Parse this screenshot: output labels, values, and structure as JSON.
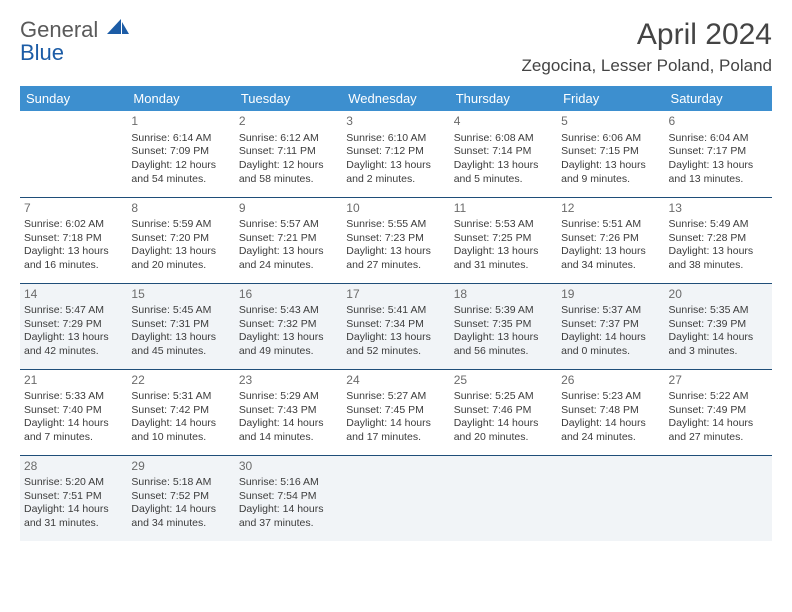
{
  "brand": {
    "name_top": "General",
    "name_bottom": "Blue",
    "accent": "#1c5ca6"
  },
  "title": "April 2024",
  "location": "Zegocina, Lesser Poland, Poland",
  "colors": {
    "header_bg": "#3d8fcf",
    "header_text": "#ffffff",
    "rule": "#1f4e79",
    "shade_bg": "#f1f4f7",
    "body_text": "#3c3c3c"
  },
  "daynames": [
    "Sunday",
    "Monday",
    "Tuesday",
    "Wednesday",
    "Thursday",
    "Friday",
    "Saturday"
  ],
  "weeks": [
    [
      {
        "n": "",
        "sr": "",
        "ss": "",
        "d1": "",
        "d2": ""
      },
      {
        "n": "1",
        "sr": "Sunrise: 6:14 AM",
        "ss": "Sunset: 7:09 PM",
        "d1": "Daylight: 12 hours",
        "d2": "and 54 minutes."
      },
      {
        "n": "2",
        "sr": "Sunrise: 6:12 AM",
        "ss": "Sunset: 7:11 PM",
        "d1": "Daylight: 12 hours",
        "d2": "and 58 minutes."
      },
      {
        "n": "3",
        "sr": "Sunrise: 6:10 AM",
        "ss": "Sunset: 7:12 PM",
        "d1": "Daylight: 13 hours",
        "d2": "and 2 minutes."
      },
      {
        "n": "4",
        "sr": "Sunrise: 6:08 AM",
        "ss": "Sunset: 7:14 PM",
        "d1": "Daylight: 13 hours",
        "d2": "and 5 minutes."
      },
      {
        "n": "5",
        "sr": "Sunrise: 6:06 AM",
        "ss": "Sunset: 7:15 PM",
        "d1": "Daylight: 13 hours",
        "d2": "and 9 minutes."
      },
      {
        "n": "6",
        "sr": "Sunrise: 6:04 AM",
        "ss": "Sunset: 7:17 PM",
        "d1": "Daylight: 13 hours",
        "d2": "and 13 minutes."
      }
    ],
    [
      {
        "n": "7",
        "sr": "Sunrise: 6:02 AM",
        "ss": "Sunset: 7:18 PM",
        "d1": "Daylight: 13 hours",
        "d2": "and 16 minutes."
      },
      {
        "n": "8",
        "sr": "Sunrise: 5:59 AM",
        "ss": "Sunset: 7:20 PM",
        "d1": "Daylight: 13 hours",
        "d2": "and 20 minutes."
      },
      {
        "n": "9",
        "sr": "Sunrise: 5:57 AM",
        "ss": "Sunset: 7:21 PM",
        "d1": "Daylight: 13 hours",
        "d2": "and 24 minutes."
      },
      {
        "n": "10",
        "sr": "Sunrise: 5:55 AM",
        "ss": "Sunset: 7:23 PM",
        "d1": "Daylight: 13 hours",
        "d2": "and 27 minutes."
      },
      {
        "n": "11",
        "sr": "Sunrise: 5:53 AM",
        "ss": "Sunset: 7:25 PM",
        "d1": "Daylight: 13 hours",
        "d2": "and 31 minutes."
      },
      {
        "n": "12",
        "sr": "Sunrise: 5:51 AM",
        "ss": "Sunset: 7:26 PM",
        "d1": "Daylight: 13 hours",
        "d2": "and 34 minutes."
      },
      {
        "n": "13",
        "sr": "Sunrise: 5:49 AM",
        "ss": "Sunset: 7:28 PM",
        "d1": "Daylight: 13 hours",
        "d2": "and 38 minutes."
      }
    ],
    [
      {
        "n": "14",
        "sr": "Sunrise: 5:47 AM",
        "ss": "Sunset: 7:29 PM",
        "d1": "Daylight: 13 hours",
        "d2": "and 42 minutes."
      },
      {
        "n": "15",
        "sr": "Sunrise: 5:45 AM",
        "ss": "Sunset: 7:31 PM",
        "d1": "Daylight: 13 hours",
        "d2": "and 45 minutes."
      },
      {
        "n": "16",
        "sr": "Sunrise: 5:43 AM",
        "ss": "Sunset: 7:32 PM",
        "d1": "Daylight: 13 hours",
        "d2": "and 49 minutes."
      },
      {
        "n": "17",
        "sr": "Sunrise: 5:41 AM",
        "ss": "Sunset: 7:34 PM",
        "d1": "Daylight: 13 hours",
        "d2": "and 52 minutes."
      },
      {
        "n": "18",
        "sr": "Sunrise: 5:39 AM",
        "ss": "Sunset: 7:35 PM",
        "d1": "Daylight: 13 hours",
        "d2": "and 56 minutes."
      },
      {
        "n": "19",
        "sr": "Sunrise: 5:37 AM",
        "ss": "Sunset: 7:37 PM",
        "d1": "Daylight: 14 hours",
        "d2": "and 0 minutes."
      },
      {
        "n": "20",
        "sr": "Sunrise: 5:35 AM",
        "ss": "Sunset: 7:39 PM",
        "d1": "Daylight: 14 hours",
        "d2": "and 3 minutes."
      }
    ],
    [
      {
        "n": "21",
        "sr": "Sunrise: 5:33 AM",
        "ss": "Sunset: 7:40 PM",
        "d1": "Daylight: 14 hours",
        "d2": "and 7 minutes."
      },
      {
        "n": "22",
        "sr": "Sunrise: 5:31 AM",
        "ss": "Sunset: 7:42 PM",
        "d1": "Daylight: 14 hours",
        "d2": "and 10 minutes."
      },
      {
        "n": "23",
        "sr": "Sunrise: 5:29 AM",
        "ss": "Sunset: 7:43 PM",
        "d1": "Daylight: 14 hours",
        "d2": "and 14 minutes."
      },
      {
        "n": "24",
        "sr": "Sunrise: 5:27 AM",
        "ss": "Sunset: 7:45 PM",
        "d1": "Daylight: 14 hours",
        "d2": "and 17 minutes."
      },
      {
        "n": "25",
        "sr": "Sunrise: 5:25 AM",
        "ss": "Sunset: 7:46 PM",
        "d1": "Daylight: 14 hours",
        "d2": "and 20 minutes."
      },
      {
        "n": "26",
        "sr": "Sunrise: 5:23 AM",
        "ss": "Sunset: 7:48 PM",
        "d1": "Daylight: 14 hours",
        "d2": "and 24 minutes."
      },
      {
        "n": "27",
        "sr": "Sunrise: 5:22 AM",
        "ss": "Sunset: 7:49 PM",
        "d1": "Daylight: 14 hours",
        "d2": "and 27 minutes."
      }
    ],
    [
      {
        "n": "28",
        "sr": "Sunrise: 5:20 AM",
        "ss": "Sunset: 7:51 PM",
        "d1": "Daylight: 14 hours",
        "d2": "and 31 minutes."
      },
      {
        "n": "29",
        "sr": "Sunrise: 5:18 AM",
        "ss": "Sunset: 7:52 PM",
        "d1": "Daylight: 14 hours",
        "d2": "and 34 minutes."
      },
      {
        "n": "30",
        "sr": "Sunrise: 5:16 AM",
        "ss": "Sunset: 7:54 PM",
        "d1": "Daylight: 14 hours",
        "d2": "and 37 minutes."
      },
      {
        "n": "",
        "sr": "",
        "ss": "",
        "d1": "",
        "d2": ""
      },
      {
        "n": "",
        "sr": "",
        "ss": "",
        "d1": "",
        "d2": ""
      },
      {
        "n": "",
        "sr": "",
        "ss": "",
        "d1": "",
        "d2": ""
      },
      {
        "n": "",
        "sr": "",
        "ss": "",
        "d1": "",
        "d2": ""
      }
    ]
  ],
  "shaded_weeks": [
    2,
    4
  ]
}
